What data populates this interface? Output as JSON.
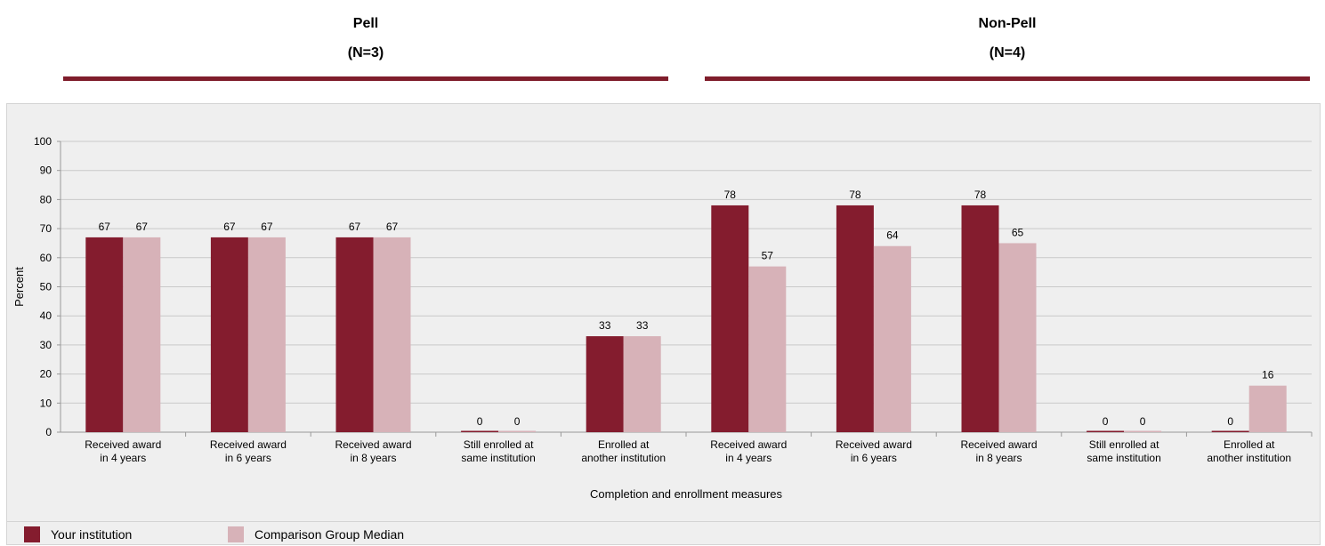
{
  "groups": [
    {
      "label": "Pell",
      "n": "(N=3)"
    },
    {
      "label": "Non-Pell",
      "n": "(N=4)"
    }
  ],
  "colors": {
    "your_institution": "#841c2e",
    "comparison": "#d7b2b8",
    "accent": "#7f1d2b"
  },
  "chart_data": {
    "type": "bar",
    "ylabel": "Percent",
    "xlabel": "Completion and enrollment measures",
    "ylim": [
      0,
      100
    ],
    "yticks": [
      0,
      10,
      20,
      30,
      40,
      50,
      60,
      70,
      80,
      90,
      100
    ],
    "grid": true,
    "legend_position": "bottom",
    "categories": [
      [
        "Received award",
        "in 4 years"
      ],
      [
        "Received award",
        "in 6 years"
      ],
      [
        "Received award",
        "in 8 years"
      ],
      [
        "Still enrolled at",
        "same institution"
      ],
      [
        "Enrolled at",
        "another institution"
      ],
      [
        "Received award",
        "in 4 years"
      ],
      [
        "Received award",
        "in 6 years"
      ],
      [
        "Received award",
        "in 8 years"
      ],
      [
        "Still enrolled at",
        "same institution"
      ],
      [
        "Enrolled at",
        "another institution"
      ]
    ],
    "series": [
      {
        "name": "Your institution",
        "values": [
          67,
          67,
          67,
          0,
          33,
          78,
          78,
          78,
          0,
          0
        ]
      },
      {
        "name": "Comparison Group Median",
        "values": [
          67,
          67,
          67,
          0,
          33,
          57,
          64,
          65,
          0,
          16
        ]
      }
    ]
  }
}
